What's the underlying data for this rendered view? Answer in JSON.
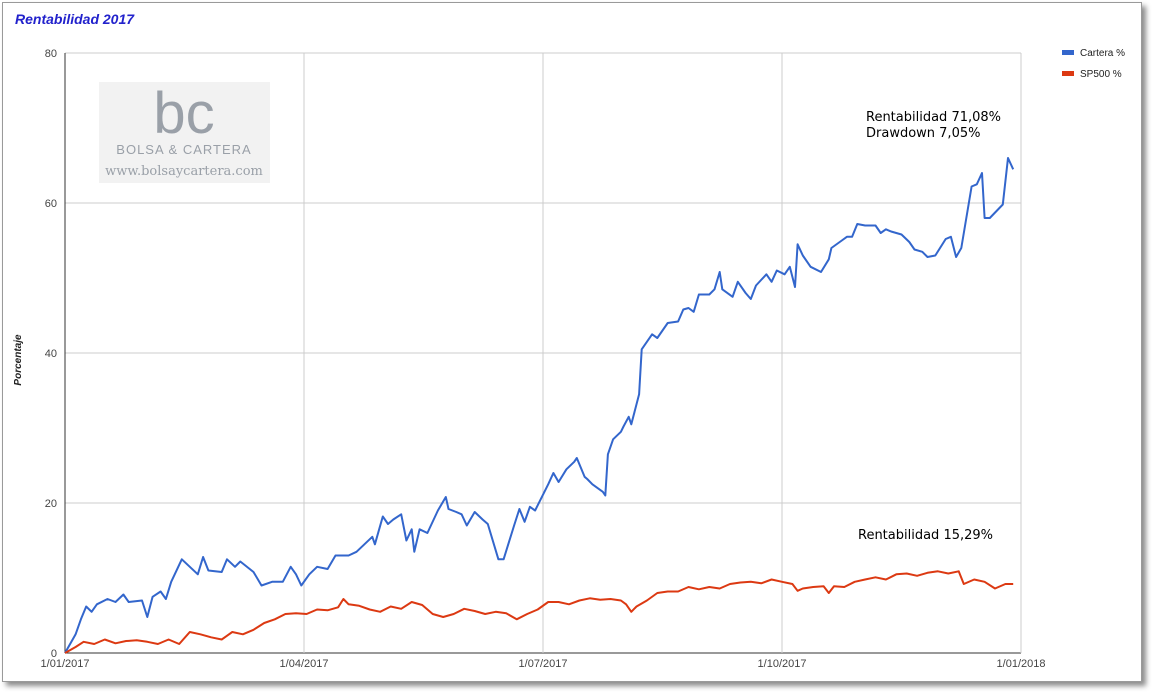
{
  "chart_data": {
    "type": "line",
    "title": "Rentabilidad 2017",
    "ylabel": "Porcentaje",
    "xlabel": "",
    "x_ticks": [
      "1/01/2017",
      "1/04/2017",
      "1/07/2017",
      "1/10/2017",
      "1/01/2018"
    ],
    "y_ticks": [
      "0",
      "20",
      "40",
      "60",
      "80"
    ],
    "xlim": [
      "2017-01-01",
      "2018-01-01"
    ],
    "ylim": [
      0,
      80
    ],
    "grid": true,
    "legend_position": "top-right",
    "series": [
      {
        "name": "Cartera %",
        "color": "#3366cc",
        "points": [
          [
            "2017-01-01",
            0
          ],
          [
            "2017-01-05",
            2.5
          ],
          [
            "2017-01-07",
            4.5
          ],
          [
            "2017-01-09",
            6.2
          ],
          [
            "2017-01-11",
            5.5
          ],
          [
            "2017-01-13",
            6.5
          ],
          [
            "2017-01-17",
            7.2
          ],
          [
            "2017-01-20",
            6.8
          ],
          [
            "2017-01-23",
            7.8
          ],
          [
            "2017-01-25",
            6.8
          ],
          [
            "2017-01-30",
            7
          ],
          [
            "2017-02-01",
            4.8
          ],
          [
            "2017-02-03",
            7.5
          ],
          [
            "2017-02-06",
            8.2
          ],
          [
            "2017-02-08",
            7.2
          ],
          [
            "2017-02-10",
            9.5
          ],
          [
            "2017-02-14",
            12.5
          ],
          [
            "2017-02-17",
            11.5
          ],
          [
            "2017-02-20",
            10.5
          ],
          [
            "2017-02-22",
            12.8
          ],
          [
            "2017-02-24",
            11
          ],
          [
            "2017-03-01",
            10.8
          ],
          [
            "2017-03-03",
            12.5
          ],
          [
            "2017-03-06",
            11.5
          ],
          [
            "2017-03-08",
            12.2
          ],
          [
            "2017-03-13",
            10.8
          ],
          [
            "2017-03-16",
            9
          ],
          [
            "2017-03-20",
            9.5
          ],
          [
            "2017-03-24",
            9.5
          ],
          [
            "2017-03-27",
            11.5
          ],
          [
            "2017-03-29",
            10.5
          ],
          [
            "2017-03-31",
            9
          ],
          [
            "2017-04-03",
            10.5
          ],
          [
            "2017-04-06",
            11.5
          ],
          [
            "2017-04-10",
            11.2
          ],
          [
            "2017-04-13",
            13
          ],
          [
            "2017-04-18",
            13
          ],
          [
            "2017-04-21",
            13.5
          ],
          [
            "2017-04-24",
            14.5
          ],
          [
            "2017-04-27",
            15.5
          ],
          [
            "2017-04-28",
            14.5
          ],
          [
            "2017-05-01",
            18.2
          ],
          [
            "2017-05-03",
            17.2
          ],
          [
            "2017-05-05",
            17.8
          ],
          [
            "2017-05-08",
            18.5
          ],
          [
            "2017-05-10",
            15
          ],
          [
            "2017-05-12",
            16.5
          ],
          [
            "2017-05-13",
            13.5
          ],
          [
            "2017-05-15",
            16.5
          ],
          [
            "2017-05-18",
            16
          ],
          [
            "2017-05-22",
            19
          ],
          [
            "2017-05-25",
            20.8
          ],
          [
            "2017-05-26",
            19.2
          ],
          [
            "2017-05-29",
            18.8
          ],
          [
            "2017-05-31",
            18.5
          ],
          [
            "2017-06-02",
            17
          ],
          [
            "2017-06-05",
            18.8
          ],
          [
            "2017-06-08",
            17.8
          ],
          [
            "2017-06-10",
            17.2
          ],
          [
            "2017-06-14",
            12.5
          ],
          [
            "2017-06-16",
            12.5
          ],
          [
            "2017-06-20",
            17
          ],
          [
            "2017-06-22",
            19.2
          ],
          [
            "2017-06-24",
            17.5
          ],
          [
            "2017-06-26",
            19.5
          ],
          [
            "2017-06-28",
            19
          ],
          [
            "2017-07-03",
            22.5
          ],
          [
            "2017-07-05",
            24
          ],
          [
            "2017-07-07",
            22.8
          ],
          [
            "2017-07-10",
            24.5
          ],
          [
            "2017-07-13",
            25.5
          ],
          [
            "2017-07-14",
            26
          ],
          [
            "2017-07-17",
            23.5
          ],
          [
            "2017-07-18",
            23.2
          ],
          [
            "2017-07-20",
            22.5
          ],
          [
            "2017-07-24",
            21.5
          ],
          [
            "2017-07-25",
            21
          ],
          [
            "2017-07-26",
            26.5
          ],
          [
            "2017-07-28",
            28.5
          ],
          [
            "2017-07-31",
            29.5
          ],
          [
            "2017-08-01",
            30.2
          ],
          [
            "2017-08-03",
            31.5
          ],
          [
            "2017-08-04",
            30.5
          ],
          [
            "2017-08-07",
            34.5
          ],
          [
            "2017-08-08",
            40.5
          ],
          [
            "2017-08-10",
            41.5
          ],
          [
            "2017-08-12",
            42.5
          ],
          [
            "2017-08-14",
            42
          ],
          [
            "2017-08-18",
            44
          ],
          [
            "2017-08-22",
            44.2
          ],
          [
            "2017-08-24",
            45.8
          ],
          [
            "2017-08-26",
            46
          ],
          [
            "2017-08-28",
            45.5
          ],
          [
            "2017-08-30",
            47.8
          ],
          [
            "2017-09-03",
            47.8
          ],
          [
            "2017-09-05",
            48.5
          ],
          [
            "2017-09-07",
            50.8
          ],
          [
            "2017-09-08",
            48.5
          ],
          [
            "2017-09-12",
            47.5
          ],
          [
            "2017-09-14",
            49.5
          ],
          [
            "2017-09-17",
            48
          ],
          [
            "2017-09-19",
            47.2
          ],
          [
            "2017-09-21",
            49
          ],
          [
            "2017-09-25",
            50.5
          ],
          [
            "2017-09-27",
            49.5
          ],
          [
            "2017-09-29",
            51
          ],
          [
            "2017-10-02",
            50.5
          ],
          [
            "2017-10-04",
            51.5
          ],
          [
            "2017-10-06",
            48.8
          ],
          [
            "2017-10-07",
            54.5
          ],
          [
            "2017-10-09",
            53
          ],
          [
            "2017-10-12",
            51.5
          ],
          [
            "2017-10-16",
            50.8
          ],
          [
            "2017-10-19",
            52.5
          ],
          [
            "2017-10-20",
            54
          ],
          [
            "2017-10-24",
            55
          ],
          [
            "2017-10-26",
            55.5
          ],
          [
            "2017-10-28",
            55.5
          ],
          [
            "2017-10-30",
            57.2
          ],
          [
            "2017-11-02",
            57
          ],
          [
            "2017-11-06",
            57
          ],
          [
            "2017-11-08",
            56
          ],
          [
            "2017-11-10",
            56.5
          ],
          [
            "2017-11-12",
            56.2
          ],
          [
            "2017-11-16",
            55.8
          ],
          [
            "2017-11-19",
            54.8
          ],
          [
            "2017-11-21",
            53.8
          ],
          [
            "2017-11-24",
            53.5
          ],
          [
            "2017-11-26",
            52.8
          ],
          [
            "2017-11-29",
            53
          ],
          [
            "2017-12-03",
            55.2
          ],
          [
            "2017-12-05",
            55.5
          ],
          [
            "2017-12-07",
            52.8
          ],
          [
            "2017-12-09",
            54
          ],
          [
            "2017-12-13",
            62.2
          ],
          [
            "2017-12-15",
            62.5
          ],
          [
            "2017-12-17",
            64
          ],
          [
            "2017-12-18",
            58
          ],
          [
            "2017-12-20",
            58
          ],
          [
            "2017-12-25",
            59.8
          ],
          [
            "2017-12-27",
            66
          ],
          [
            "2017-12-29",
            64.5
          ]
        ]
      },
      {
        "name": "SP500 %",
        "color": "#dc3912",
        "points": [
          [
            "2017-01-01",
            0
          ],
          [
            "2017-01-05",
            0.8
          ],
          [
            "2017-01-08",
            1.5
          ],
          [
            "2017-01-12",
            1.2
          ],
          [
            "2017-01-16",
            1.8
          ],
          [
            "2017-01-20",
            1.3
          ],
          [
            "2017-01-24",
            1.6
          ],
          [
            "2017-01-28",
            1.7
          ],
          [
            "2017-02-01",
            1.5
          ],
          [
            "2017-02-05",
            1.2
          ],
          [
            "2017-02-09",
            1.8
          ],
          [
            "2017-02-13",
            1.2
          ],
          [
            "2017-02-17",
            2.8
          ],
          [
            "2017-02-21",
            2.5
          ],
          [
            "2017-02-25",
            2.1
          ],
          [
            "2017-03-01",
            1.8
          ],
          [
            "2017-03-05",
            2.8
          ],
          [
            "2017-03-09",
            2.5
          ],
          [
            "2017-03-13",
            3.1
          ],
          [
            "2017-03-17",
            4
          ],
          [
            "2017-03-21",
            4.5
          ],
          [
            "2017-03-25",
            5.2
          ],
          [
            "2017-03-29",
            5.3
          ],
          [
            "2017-04-02",
            5.2
          ],
          [
            "2017-04-06",
            5.8
          ],
          [
            "2017-04-10",
            5.7
          ],
          [
            "2017-04-14",
            6.1
          ],
          [
            "2017-04-16",
            7.2
          ],
          [
            "2017-04-18",
            6.5
          ],
          [
            "2017-04-22",
            6.3
          ],
          [
            "2017-04-26",
            5.8
          ],
          [
            "2017-04-30",
            5.5
          ],
          [
            "2017-05-04",
            6.2
          ],
          [
            "2017-05-08",
            5.9
          ],
          [
            "2017-05-12",
            6.8
          ],
          [
            "2017-05-16",
            6.4
          ],
          [
            "2017-05-20",
            5.2
          ],
          [
            "2017-05-24",
            4.8
          ],
          [
            "2017-05-28",
            5.2
          ],
          [
            "2017-06-01",
            5.9
          ],
          [
            "2017-06-05",
            5.6
          ],
          [
            "2017-06-09",
            5.2
          ],
          [
            "2017-06-13",
            5.5
          ],
          [
            "2017-06-17",
            5.3
          ],
          [
            "2017-06-21",
            4.5
          ],
          [
            "2017-06-25",
            5.2
          ],
          [
            "2017-06-29",
            5.8
          ],
          [
            "2017-07-03",
            6.8
          ],
          [
            "2017-07-07",
            6.8
          ],
          [
            "2017-07-11",
            6.5
          ],
          [
            "2017-07-15",
            7
          ],
          [
            "2017-07-19",
            7.3
          ],
          [
            "2017-07-23",
            7.1
          ],
          [
            "2017-07-27",
            7.2
          ],
          [
            "2017-07-31",
            7
          ],
          [
            "2017-08-02",
            6.5
          ],
          [
            "2017-08-04",
            5.5
          ],
          [
            "2017-08-06",
            6.2
          ],
          [
            "2017-08-10",
            7
          ],
          [
            "2017-08-14",
            8
          ],
          [
            "2017-08-18",
            8.2
          ],
          [
            "2017-08-22",
            8.2
          ],
          [
            "2017-08-26",
            8.8
          ],
          [
            "2017-08-30",
            8.5
          ],
          [
            "2017-09-03",
            8.8
          ],
          [
            "2017-09-07",
            8.6
          ],
          [
            "2017-09-11",
            9.2
          ],
          [
            "2017-09-15",
            9.4
          ],
          [
            "2017-09-19",
            9.5
          ],
          [
            "2017-09-23",
            9.3
          ],
          [
            "2017-09-27",
            9.8
          ],
          [
            "2017-10-01",
            9.5
          ],
          [
            "2017-10-05",
            9.2
          ],
          [
            "2017-10-07",
            8.3
          ],
          [
            "2017-10-09",
            8.6
          ],
          [
            "2017-10-13",
            8.8
          ],
          [
            "2017-10-17",
            8.9
          ],
          [
            "2017-10-19",
            8
          ],
          [
            "2017-10-21",
            8.9
          ],
          [
            "2017-10-25",
            8.8
          ],
          [
            "2017-10-29",
            9.5
          ],
          [
            "2017-11-02",
            9.8
          ],
          [
            "2017-11-06",
            10.1
          ],
          [
            "2017-11-10",
            9.8
          ],
          [
            "2017-11-14",
            10.5
          ],
          [
            "2017-11-18",
            10.6
          ],
          [
            "2017-11-22",
            10.3
          ],
          [
            "2017-11-26",
            10.7
          ],
          [
            "2017-11-30",
            10.9
          ],
          [
            "2017-12-04",
            10.6
          ],
          [
            "2017-12-08",
            10.9
          ],
          [
            "2017-12-10",
            9.2
          ],
          [
            "2017-12-14",
            9.8
          ],
          [
            "2017-12-18",
            9.5
          ],
          [
            "2017-12-22",
            8.6
          ],
          [
            "2017-12-26",
            9.2
          ],
          [
            "2017-12-29",
            9.2
          ]
        ]
      }
    ],
    "annotations": [
      {
        "text": "Rentabilidad 71,08%"
      },
      {
        "text": "Drawdown 7,05%"
      },
      {
        "text": "Rentabilidad 15,29%"
      }
    ]
  },
  "watermark": {
    "logo": "bc",
    "brand": "BOLSA & CARTERA",
    "url": "www.bolsaycartera.com"
  }
}
